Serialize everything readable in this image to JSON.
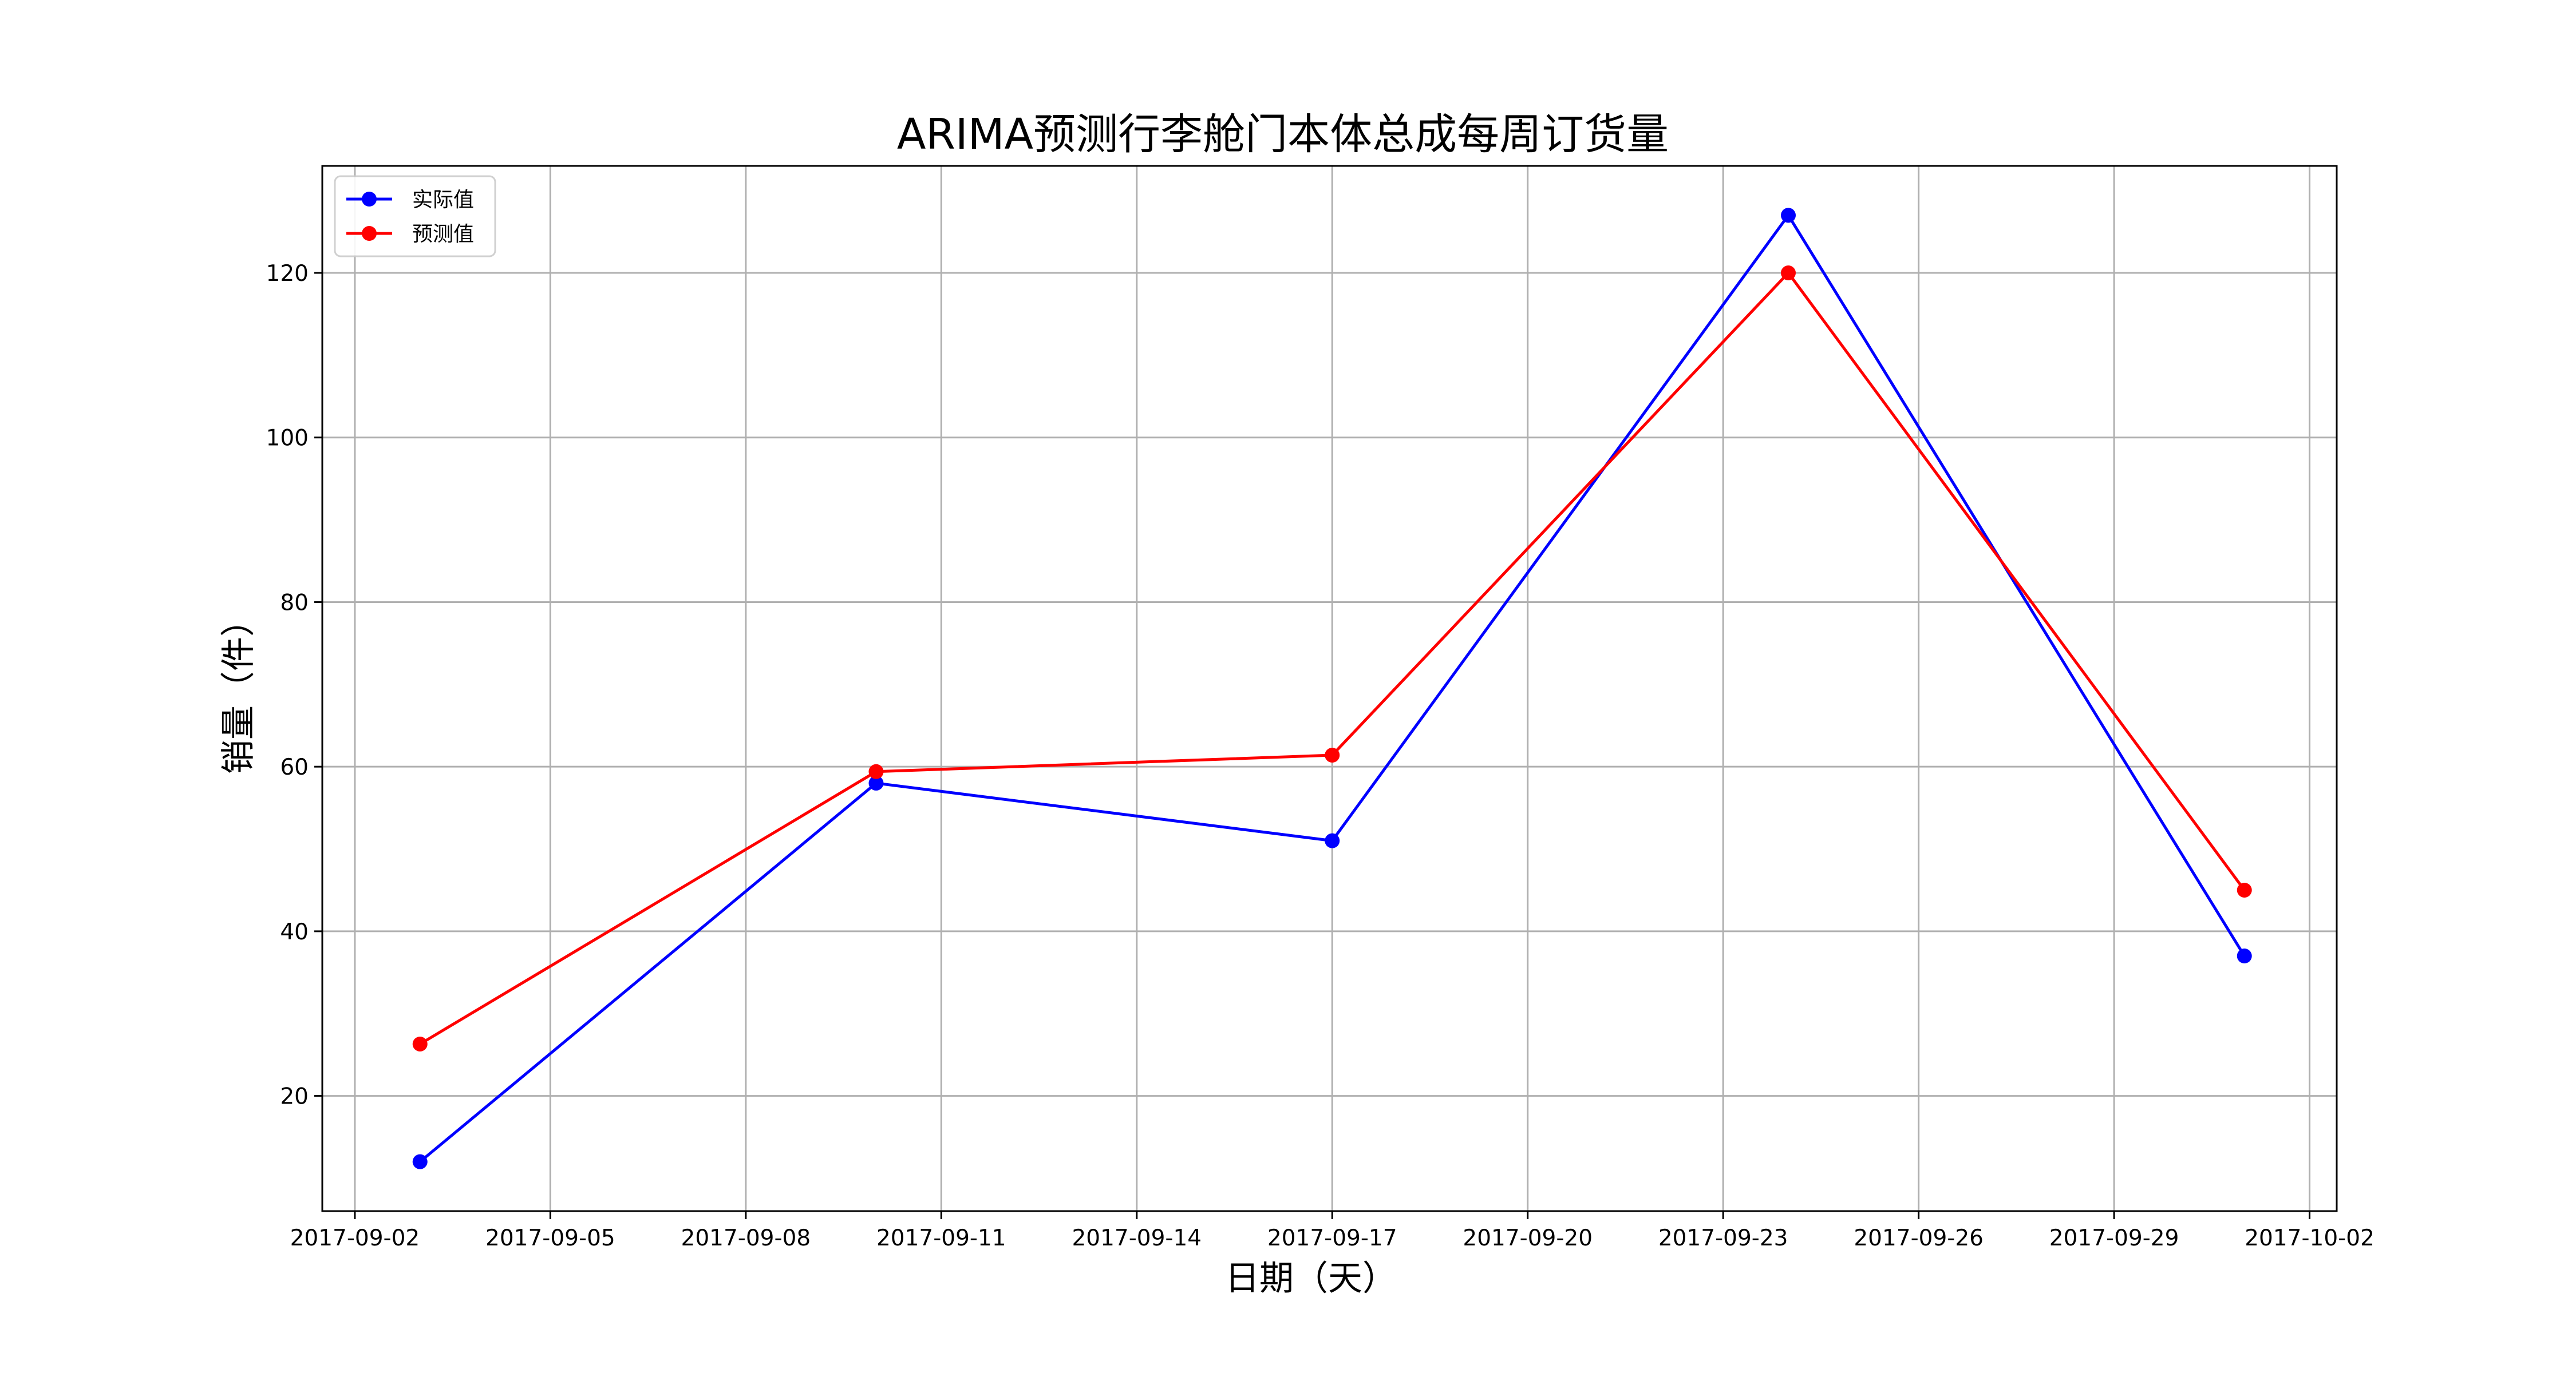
{
  "chart_data": {
    "type": "line",
    "title": "ARIMA预测行李舱门本体总成每周订货量",
    "xlabel": "日期（天）",
    "ylabel": "销量（件）",
    "x_ticks": [
      "2017-09-02",
      "2017-09-05",
      "2017-09-08",
      "2017-09-11",
      "2017-09-14",
      "2017-09-17",
      "2017-09-20",
      "2017-09-23",
      "2017-09-26",
      "2017-09-29",
      "2017-10-02"
    ],
    "y_ticks": [
      20,
      40,
      60,
      80,
      100,
      120
    ],
    "xlim": [
      "2017-09-01T12:00",
      "2017-10-02T10:00"
    ],
    "ylim": [
      6,
      133
    ],
    "x": [
      "2017-09-03",
      "2017-09-10",
      "2017-09-17",
      "2017-09-24",
      "2017-10-01"
    ],
    "series": [
      {
        "name": "实际值",
        "color": "#0000ff",
        "values": [
          12,
          58,
          51,
          127,
          37
        ]
      },
      {
        "name": "预测值",
        "color": "#ff0000",
        "values": [
          26.3,
          59.4,
          61.4,
          120,
          45
        ]
      }
    ],
    "grid": true,
    "legend_position": "upper-left"
  }
}
